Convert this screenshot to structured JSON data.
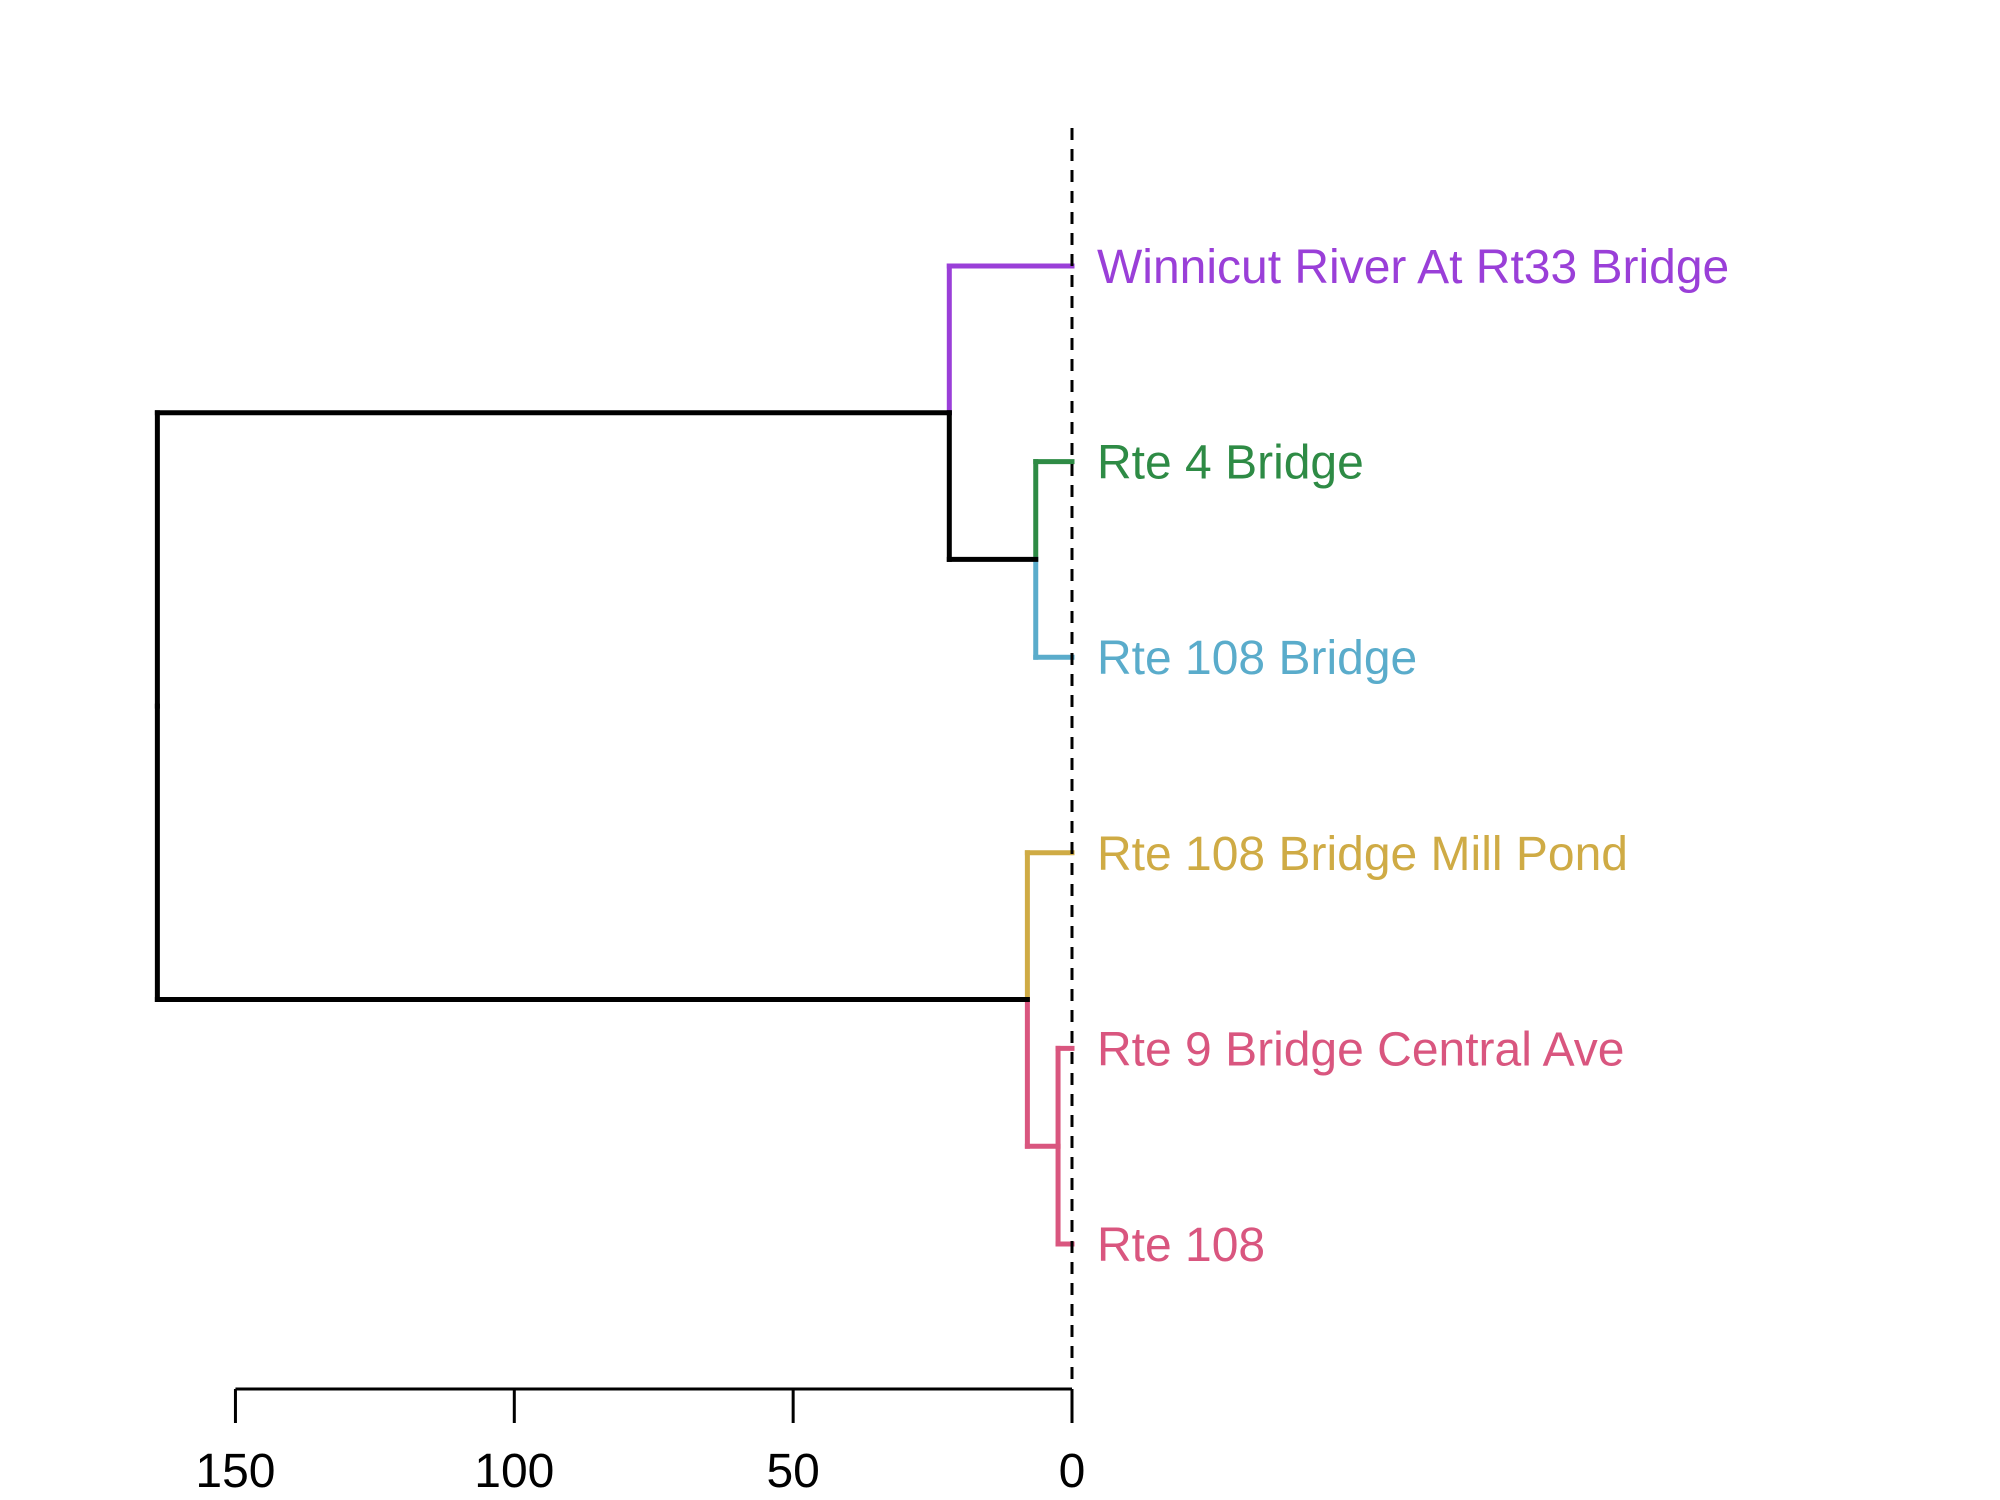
{
  "chart_data": {
    "type": "dendrogram",
    "orientation": "horizontal",
    "xlim": [
      150,
      0
    ],
    "xticks": [
      150,
      100,
      50,
      0
    ],
    "grid": false,
    "cut_line": 0,
    "leaves": [
      {
        "label": "Winnicut River At Rt33 Bridge",
        "color": "#9a3fd8"
      },
      {
        "label": "Rte 4 Bridge",
        "color": "#2e8b45"
      },
      {
        "label": "Rte 108 Bridge",
        "color": "#5aaccb"
      },
      {
        "label": "Rte 108 Bridge Mill Pond",
        "color": "#cfab45"
      },
      {
        "label": "Rte 9 Bridge Central Ave",
        "color": "#d9567f"
      },
      {
        "label": "Rte 108",
        "color": "#d9567f"
      }
    ],
    "merges": [
      {
        "left": "L4",
        "right": "L5",
        "height": 2.5,
        "color": "#d9567f"
      },
      {
        "left": "L1",
        "right": "L2",
        "height": 6.5,
        "color": "#000000",
        "left_color": "#2e8b45",
        "right_color": "#5aaccb"
      },
      {
        "left": "L3",
        "right": "M0",
        "height": 8,
        "color": "#000000",
        "left_color": "#cfab45",
        "right_color": "#d9567f"
      },
      {
        "left": "L0",
        "right": "M1",
        "height": 22,
        "color": "#000000",
        "left_color": "#9a3fd8",
        "right_color": "#000000"
      },
      {
        "left": "M3",
        "right": "M2",
        "height": 164,
        "color": "#000000"
      }
    ]
  }
}
